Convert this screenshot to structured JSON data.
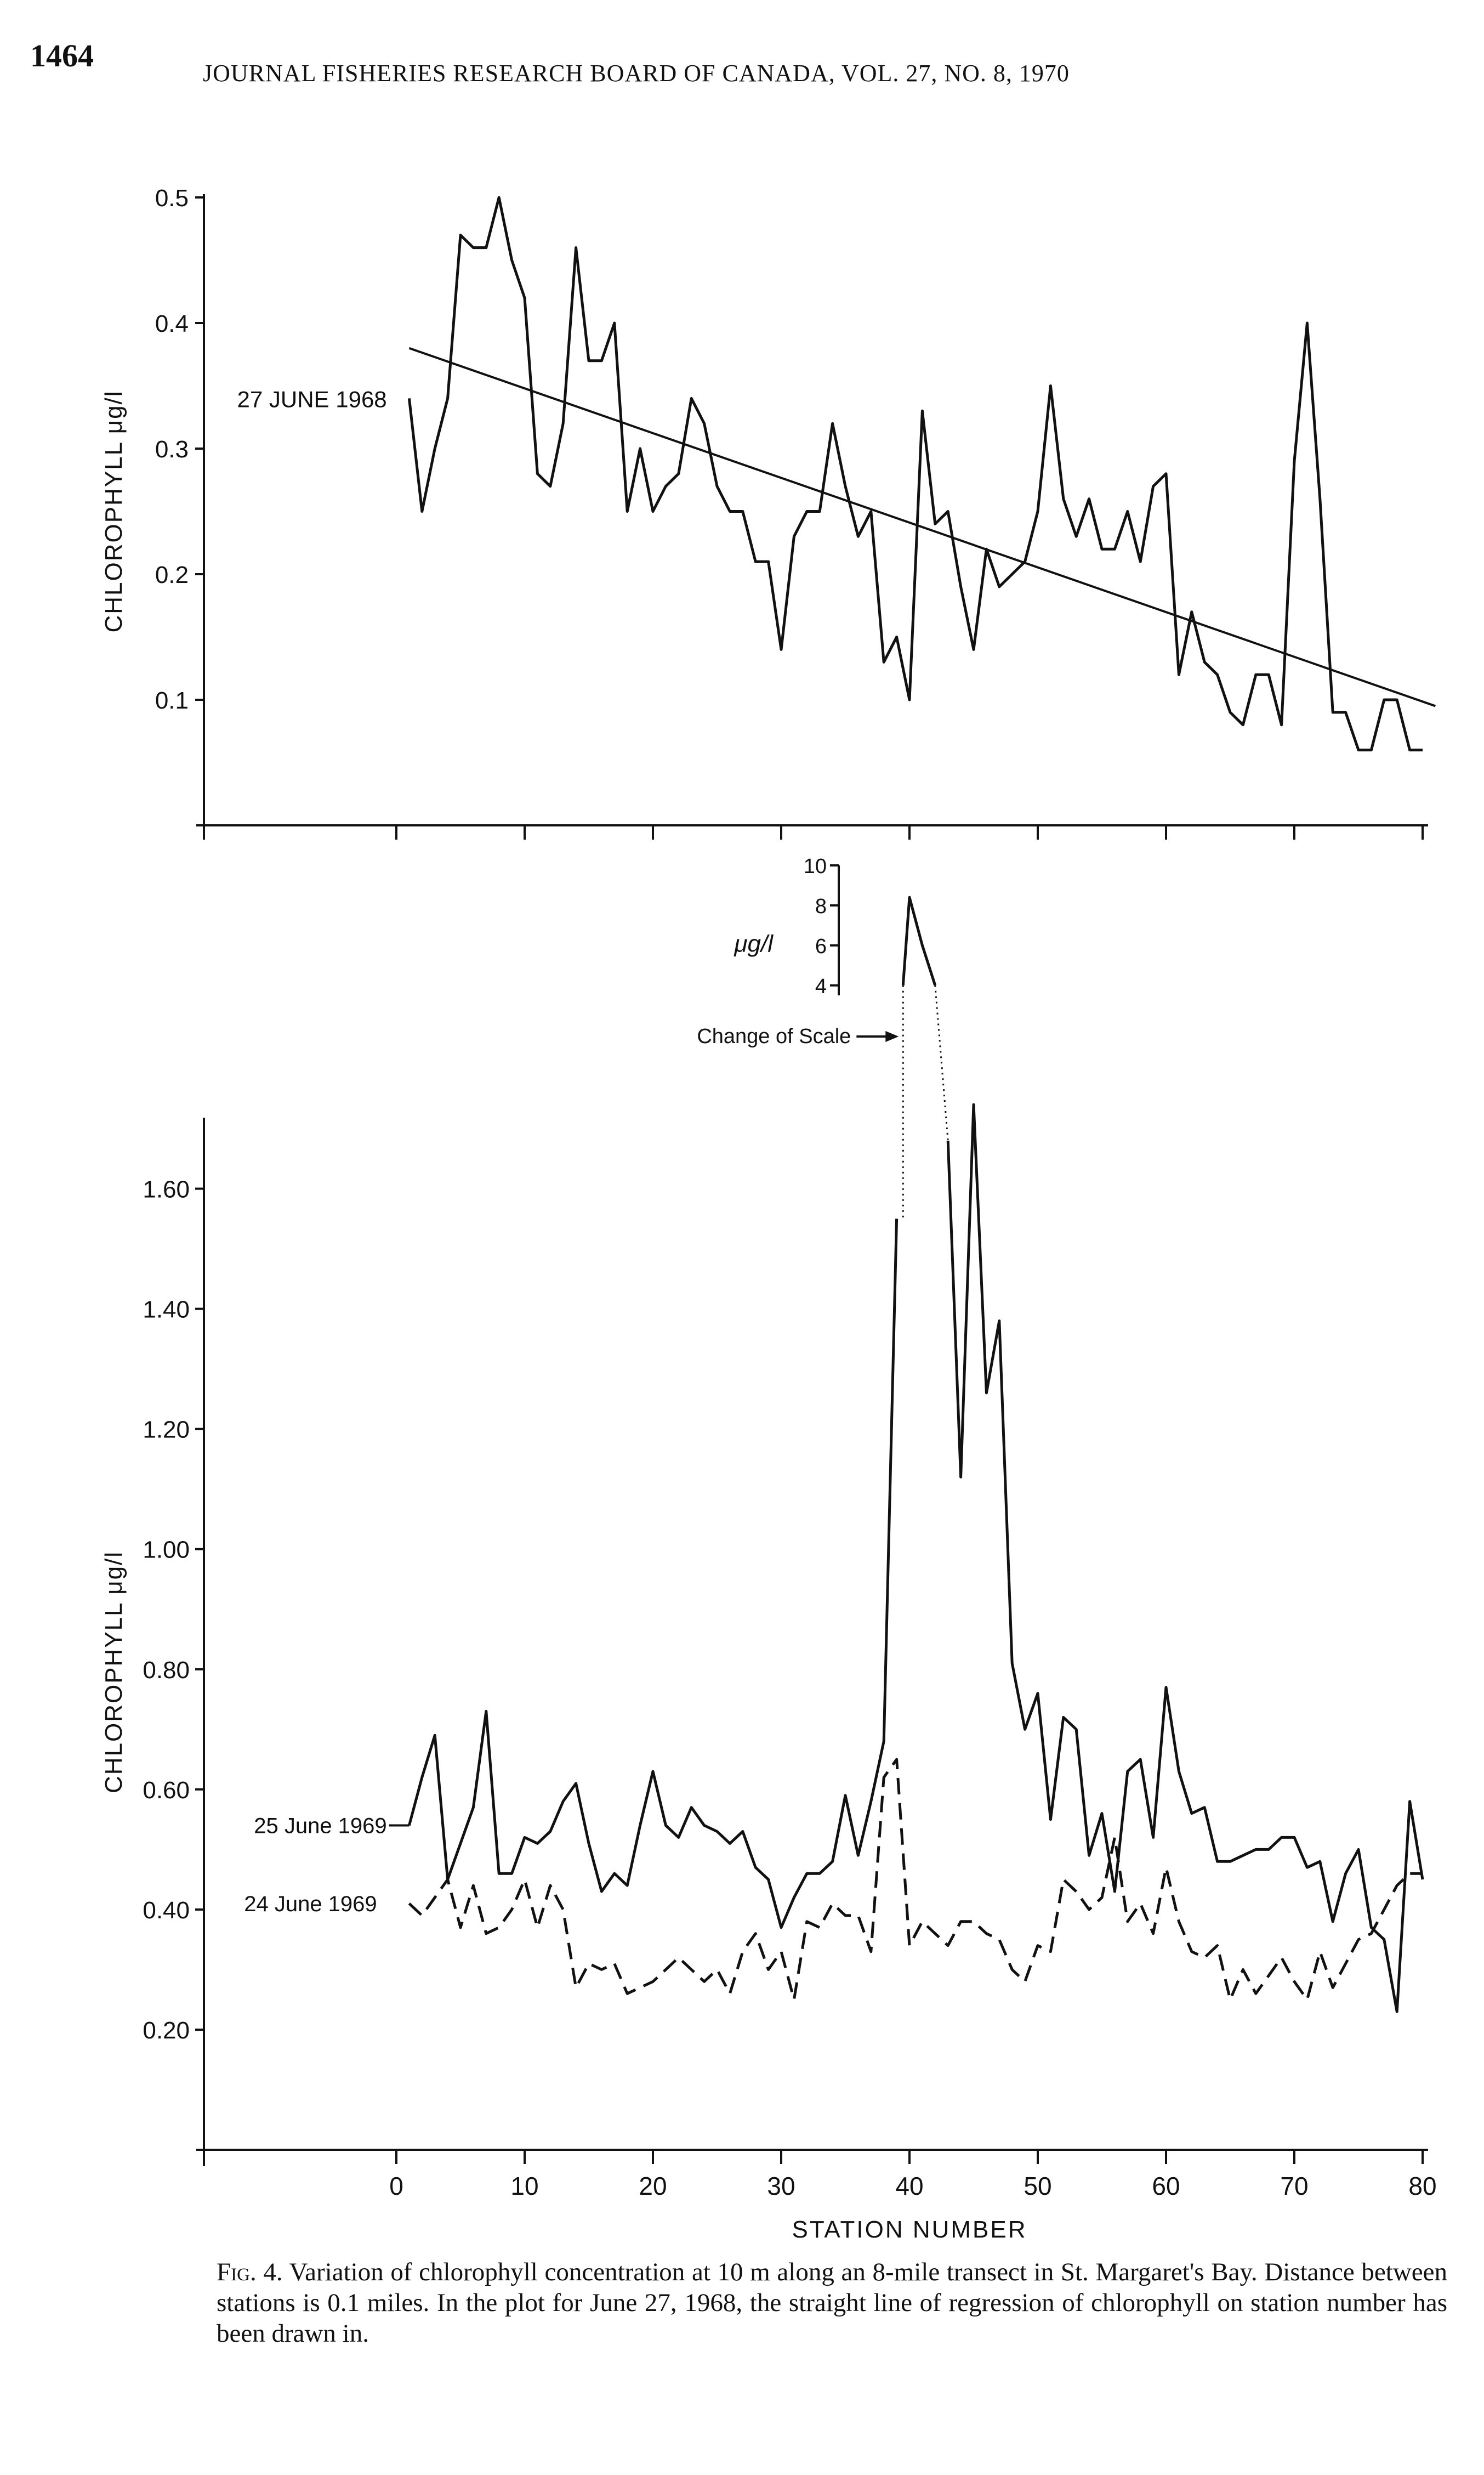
{
  "page": {
    "page_number": "1464",
    "journal_header": "JOURNAL FISHERIES RESEARCH BOARD OF CANADA, VOL. 27, NO. 8, 1970"
  },
  "caption": {
    "label": "Fig. 4.",
    "text": "Variation of chlorophyll concentration at 10 m along an 8-mile transect in St. Margaret's Bay. Distance between stations is 0.1 miles. In the plot for June 27, 1968, the straight line of regression of chlorophyll on station number has been drawn in."
  },
  "colors": {
    "ink": "#111111",
    "paper": "#ffffff"
  },
  "chart_data": [
    {
      "type": "line",
      "ylabel": "CHLOROPHYLL μg/l",
      "y_ticks": [
        0.1,
        0.2,
        0.3,
        0.4,
        0.5
      ],
      "y_tick_labels": [
        "0.1",
        "0.2",
        "0.3",
        "0.4",
        "0.5"
      ],
      "ylim": [
        0,
        0.5
      ],
      "xlim": [
        -15,
        80
      ],
      "series": [
        {
          "name": "27 JUNE 1968",
          "style": "solid",
          "x": [
            1,
            2,
            3,
            4,
            5,
            6,
            7,
            8,
            9,
            10,
            11,
            12,
            13,
            14,
            15,
            16,
            17,
            18,
            19,
            20,
            21,
            22,
            23,
            24,
            25,
            26,
            27,
            28,
            29,
            30,
            31,
            32,
            33,
            34,
            35,
            36,
            37,
            38,
            39,
            40,
            41,
            42,
            43,
            44,
            45,
            46,
            47,
            48,
            49,
            50,
            51,
            52,
            53,
            54,
            55,
            56,
            57,
            58,
            59,
            60,
            61,
            62,
            63,
            64,
            65,
            66,
            67,
            68,
            69,
            70,
            71,
            72,
            73,
            74,
            75,
            76,
            77,
            78,
            79,
            80
          ],
          "values": [
            0.34,
            0.25,
            0.3,
            0.34,
            0.47,
            0.46,
            0.46,
            0.5,
            0.45,
            0.42,
            0.28,
            0.27,
            0.32,
            0.46,
            0.37,
            0.37,
            0.4,
            0.25,
            0.3,
            0.25,
            0.27,
            0.28,
            0.34,
            0.32,
            0.27,
            0.25,
            0.25,
            0.21,
            0.21,
            0.14,
            0.23,
            0.25,
            0.25,
            0.32,
            0.27,
            0.23,
            0.25,
            0.13,
            0.15,
            0.1,
            0.33,
            0.24,
            0.25,
            0.19,
            0.14,
            0.22,
            0.19,
            0.2,
            0.21,
            0.25,
            0.35,
            0.26,
            0.23,
            0.26,
            0.22,
            0.22,
            0.25,
            0.21,
            0.27,
            0.28,
            0.12,
            0.17,
            0.13,
            0.12,
            0.09,
            0.08,
            0.12,
            0.12,
            0.08,
            0.29,
            0.4,
            0.26,
            0.09,
            0.09,
            0.06,
            0.06,
            0.1,
            0.1,
            0.06,
            0.06
          ]
        }
      ],
      "regression": {
        "x": [
          1,
          81
        ],
        "values": [
          0.38,
          0.095
        ]
      }
    },
    {
      "type": "line",
      "ylabel": "CHLOROPHYLL μg/l",
      "xlabel": "STATION NUMBER",
      "x_ticks": [
        0,
        10,
        20,
        30,
        40,
        50,
        60,
        70,
        80
      ],
      "x_tick_labels": [
        "0",
        "10",
        "20",
        "30",
        "40",
        "50",
        "60",
        "70",
        "80"
      ],
      "xlim": [
        -15,
        80
      ],
      "y_ticks": [
        0.2,
        0.4,
        0.6,
        0.8,
        1.0,
        1.2,
        1.4,
        1.6
      ],
      "y_tick_labels": [
        "0.20",
        "0.40",
        "0.60",
        "0.80",
        "1.00",
        "1.20",
        "1.40",
        "1.60"
      ],
      "ylim": [
        0,
        1.7
      ],
      "inset_scale": {
        "unit_label": "μg/l",
        "ticks": [
          4,
          6,
          8,
          10
        ],
        "tick_labels": [
          "4",
          "6",
          "8",
          "10"
        ],
        "range": [
          3.5,
          10
        ],
        "annotation": "Change of Scale",
        "series": {
          "x": [
            39.5,
            40,
            41,
            42
          ],
          "values": [
            4.0,
            8.4,
            6.0,
            4.0
          ]
        }
      },
      "series": [
        {
          "name": "25 June 1969",
          "style": "solid",
          "x": [
            1,
            2,
            3,
            4,
            5,
            6,
            7,
            8,
            9,
            10,
            11,
            12,
            13,
            14,
            15,
            16,
            17,
            18,
            19,
            20,
            21,
            22,
            23,
            24,
            25,
            26,
            27,
            28,
            29,
            30,
            31,
            32,
            33,
            34,
            35,
            36,
            37,
            38,
            39,
            40,
            41,
            42,
            43,
            44,
            45,
            46,
            47,
            48,
            49,
            50,
            51,
            52,
            53,
            54,
            55,
            56,
            57,
            58,
            59,
            60,
            61,
            62,
            63,
            64,
            65,
            66,
            67,
            68,
            69,
            70,
            71,
            72,
            73,
            74,
            75,
            76,
            77,
            78,
            79,
            80
          ],
          "values": [
            0.54,
            0.62,
            0.69,
            0.45,
            0.51,
            0.57,
            0.73,
            0.46,
            0.46,
            0.52,
            0.51,
            0.53,
            0.58,
            0.61,
            0.51,
            0.43,
            0.46,
            0.44,
            0.54,
            0.63,
            0.54,
            0.52,
            0.57,
            0.54,
            0.53,
            0.51,
            0.53,
            0.47,
            0.45,
            0.37,
            0.42,
            0.46,
            0.46,
            0.48,
            0.59,
            0.49,
            0.58,
            0.68,
            1.55,
            null,
            null,
            null,
            1.68,
            1.12,
            1.74,
            1.26,
            1.38,
            0.81,
            0.7,
            0.76,
            0.55,
            0.72,
            0.7,
            0.49,
            0.56,
            0.43,
            0.63,
            0.65,
            0.52,
            0.77,
            0.63,
            0.56,
            0.57,
            0.48,
            0.48,
            0.49,
            0.5,
            0.5,
            0.52,
            0.52,
            0.47,
            0.48,
            0.38,
            0.46,
            0.5,
            0.37,
            0.35,
            0.23,
            0.58,
            0.45
          ]
        },
        {
          "name": "24 June 1969",
          "style": "dashed",
          "x": [
            1,
            2,
            3,
            4,
            5,
            6,
            7,
            8,
            9,
            10,
            11,
            12,
            13,
            14,
            15,
            16,
            17,
            18,
            19,
            20,
            21,
            22,
            23,
            24,
            25,
            26,
            27,
            28,
            29,
            30,
            31,
            32,
            33,
            34,
            35,
            36,
            37,
            38,
            39,
            40,
            41,
            42,
            43,
            44,
            45,
            46,
            47,
            48,
            49,
            50,
            51,
            52,
            53,
            54,
            55,
            56,
            57,
            58,
            59,
            60,
            61,
            62,
            63,
            64,
            65,
            66,
            67,
            68,
            69,
            70,
            71,
            72,
            73,
            74,
            75,
            76,
            77,
            78,
            79,
            80
          ],
          "values": [
            0.41,
            0.39,
            0.42,
            0.45,
            0.37,
            0.44,
            0.36,
            0.37,
            0.4,
            0.45,
            0.37,
            0.44,
            0.4,
            0.27,
            0.31,
            0.3,
            0.31,
            0.26,
            0.27,
            0.28,
            0.3,
            0.32,
            0.3,
            0.28,
            0.3,
            0.26,
            0.33,
            0.36,
            0.3,
            0.33,
            0.25,
            0.38,
            0.37,
            0.41,
            0.39,
            0.39,
            0.33,
            0.62,
            0.65,
            0.34,
            0.38,
            0.36,
            0.34,
            0.38,
            0.38,
            0.36,
            0.35,
            0.3,
            0.28,
            0.34,
            0.33,
            0.45,
            0.43,
            0.4,
            0.42,
            0.52,
            0.38,
            0.41,
            0.36,
            0.47,
            0.38,
            0.33,
            0.32,
            0.34,
            0.25,
            0.3,
            0.26,
            0.29,
            0.32,
            0.28,
            0.25,
            0.33,
            0.27,
            0.31,
            0.35,
            0.36,
            0.4,
            0.44,
            0.46,
            0.46
          ]
        }
      ]
    }
  ]
}
